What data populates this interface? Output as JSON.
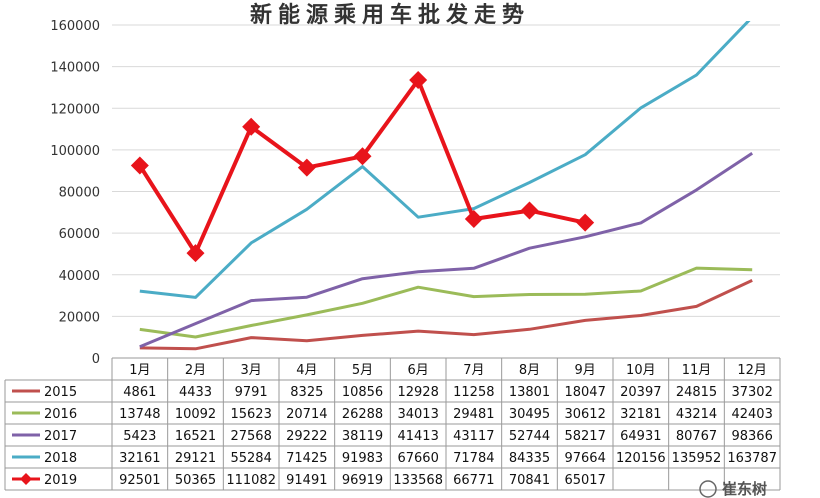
{
  "chart_data": {
    "type": "line",
    "title": "新能源乘用车批发走势",
    "categories": [
      "1月",
      "2月",
      "3月",
      "4月",
      "5月",
      "6月",
      "7月",
      "8月",
      "9月",
      "10月",
      "11月",
      "12月"
    ],
    "ylim": [
      0,
      160000
    ],
    "yticks": [
      "0",
      "20000",
      "40000",
      "60000",
      "80000",
      "100000",
      "120000",
      "140000",
      "160000"
    ],
    "grid": true,
    "legend": "data-table-bottom",
    "series": [
      {
        "name": "2015",
        "color": "#c0504d",
        "marker": "none",
        "values": [
          4861,
          4433,
          9791,
          8325,
          10856,
          12928,
          11258,
          13801,
          18047,
          20397,
          24815,
          37302
        ],
        "labels": [
          "4861",
          "4433",
          "9791",
          "8325",
          "10856",
          "12928",
          "11258",
          "13801",
          "18047",
          "20397",
          "24815",
          "37302"
        ]
      },
      {
        "name": "2016",
        "color": "#9bbb59",
        "marker": "none",
        "values": [
          13748,
          10092,
          15623,
          20714,
          26288,
          34013,
          29481,
          30495,
          30612,
          32181,
          43214,
          42403
        ],
        "labels": [
          "13748",
          "10092",
          "15623",
          "20714",
          "26288",
          "34013",
          "29481",
          "30495",
          "30612",
          "32181",
          "43214",
          "42403"
        ]
      },
      {
        "name": "2017",
        "color": "#7f62a8",
        "marker": "none",
        "values": [
          5423,
          16521,
          27568,
          29222,
          38119,
          41413,
          43117,
          52744,
          58217,
          64931,
          80767,
          98366
        ],
        "labels": [
          "5423",
          "16521",
          "27568",
          "29222",
          "38119",
          "41413",
          "43117",
          "52744",
          "58217",
          "64931",
          "80767",
          "98366"
        ]
      },
      {
        "name": "2018",
        "color": "#4bacc6",
        "marker": "none",
        "values": [
          32161,
          29121,
          55284,
          71425,
          91983,
          67660,
          71784,
          84335,
          97664,
          120156,
          135952,
          163787
        ],
        "labels": [
          "32161",
          "29121",
          "55284",
          "71425",
          "91983",
          "67660",
          "71784",
          "84335",
          "97664",
          "120156",
          "135952",
          "163787"
        ]
      },
      {
        "name": "2019",
        "color": "#e8141b",
        "marker": "diamond",
        "values": [
          92501,
          50365,
          111082,
          91491,
          96919,
          133568,
          66771,
          70841,
          65017,
          null,
          null,
          null
        ],
        "labels": [
          "92501",
          "50365",
          "111082",
          "91491",
          "96919",
          "133568",
          "66771",
          "70841",
          "65017",
          "",
          "",
          ""
        ]
      }
    ],
    "watermark": "崔东树"
  }
}
